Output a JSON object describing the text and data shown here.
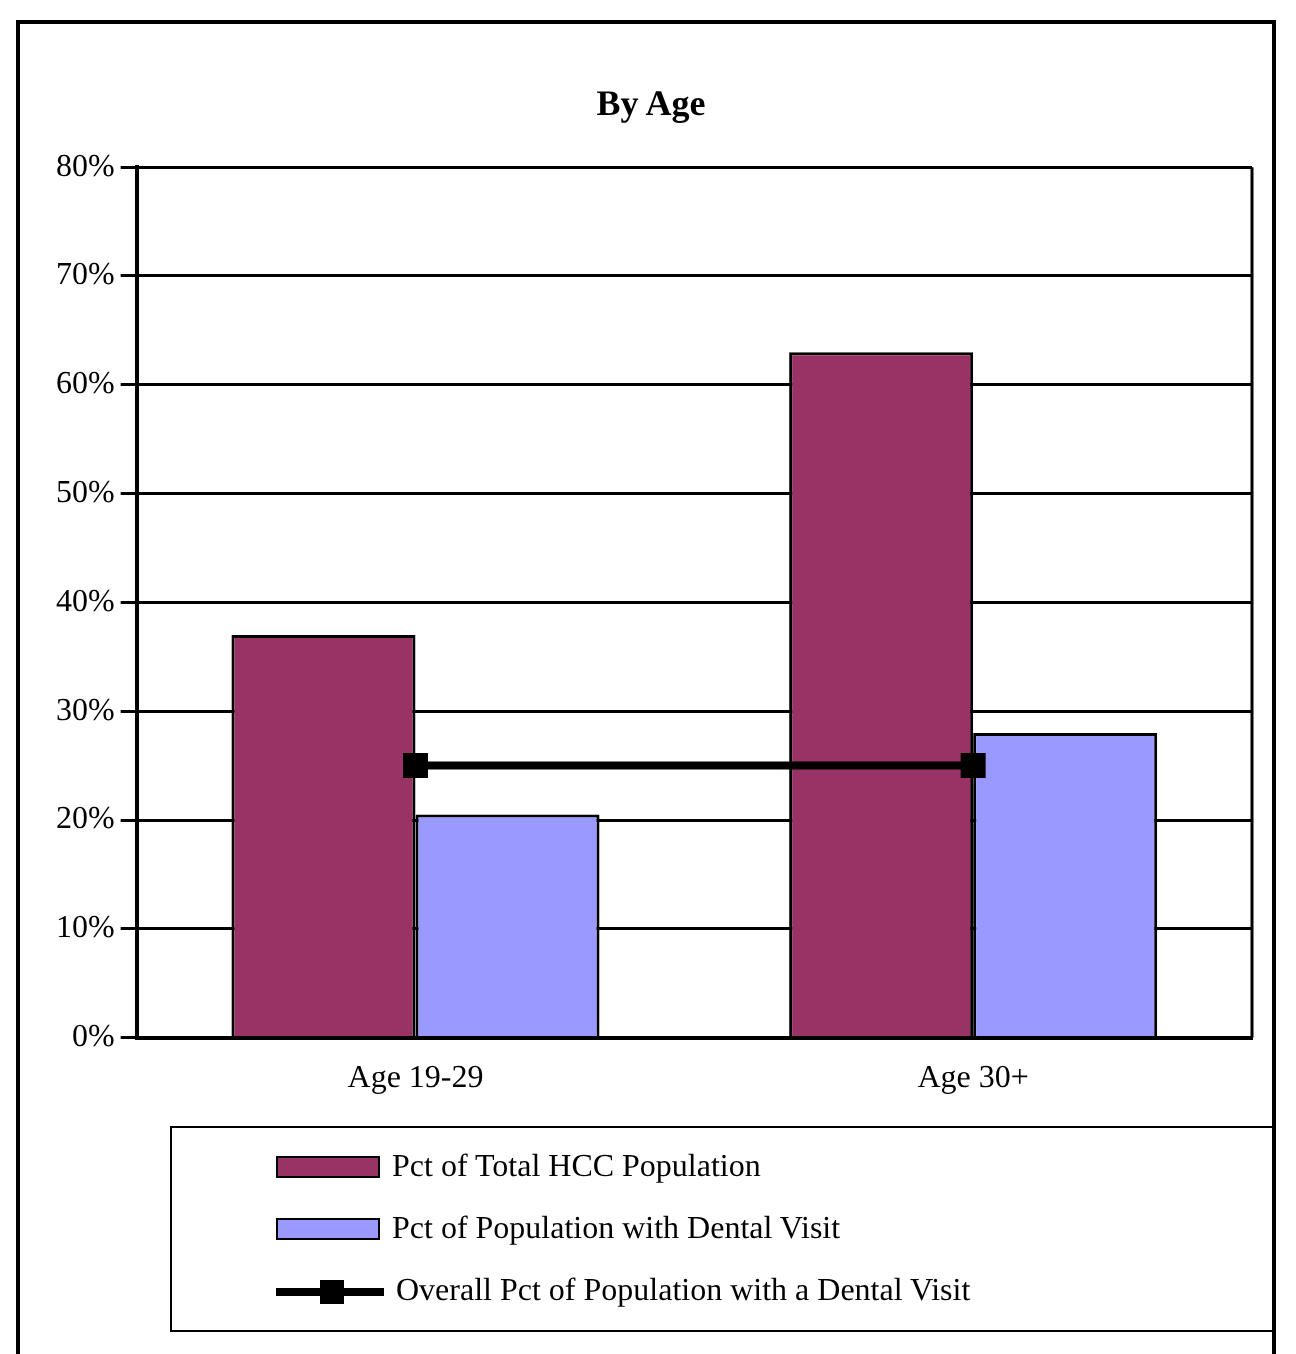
{
  "chart_data": {
    "type": "bar",
    "title": "By Age",
    "categories": [
      "Age 19-29",
      "Age 30+"
    ],
    "series": [
      {
        "name": "Pct of Total HCC Population",
        "color": "#993366",
        "values": [
          37,
          63
        ]
      },
      {
        "name": "Pct of Population with Dental Visit",
        "color": "#9999ff",
        "values": [
          20.5,
          28
        ]
      },
      {
        "name": "Overall Pct of Population with a Dental Visit",
        "type": "line",
        "color": "#000000",
        "values": [
          25,
          25
        ],
        "marker": "square"
      }
    ],
    "ylim": [
      0,
      80
    ],
    "yticks": [
      {
        "value": 0,
        "label": "0%"
      },
      {
        "value": 10,
        "label": "10%"
      },
      {
        "value": 20,
        "label": "20%"
      },
      {
        "value": 30,
        "label": "30%"
      },
      {
        "value": 40,
        "label": "40%"
      },
      {
        "value": 50,
        "label": "50%"
      },
      {
        "value": 60,
        "label": "60%"
      },
      {
        "value": 70,
        "label": "70%"
      },
      {
        "value": 80,
        "label": "80%"
      }
    ],
    "grid": "y",
    "legend": "bottom"
  }
}
